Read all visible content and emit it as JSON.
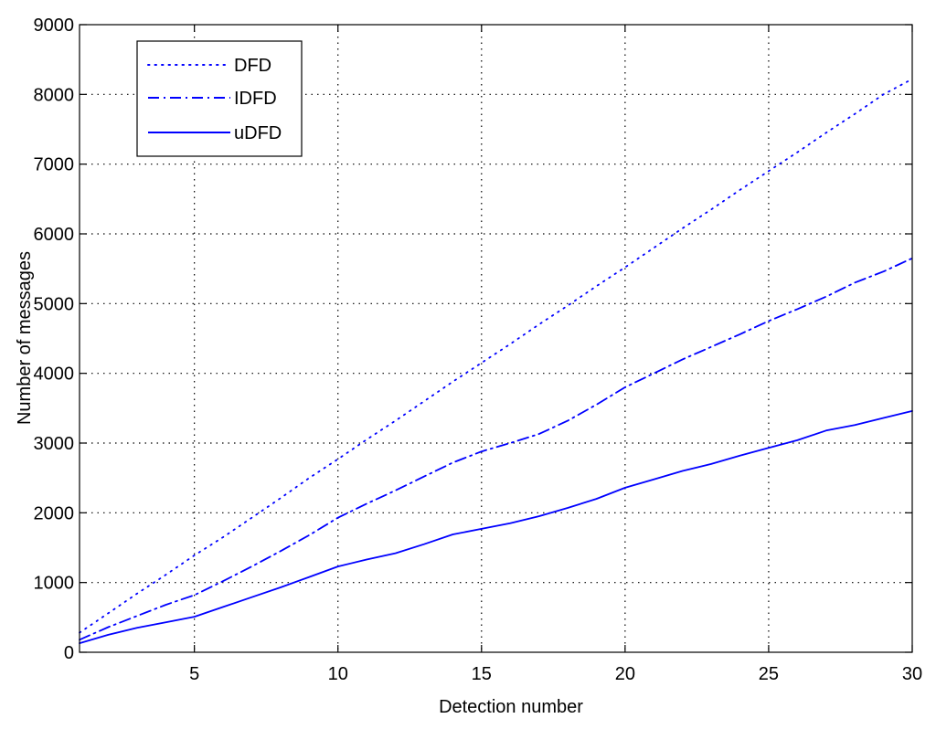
{
  "chart_data": {
    "type": "line",
    "title": "",
    "xlabel": "Detection number",
    "ylabel": "Number of messages",
    "xlim": [
      1,
      30
    ],
    "ylim": [
      0,
      9000
    ],
    "xticks": [
      5,
      10,
      15,
      20,
      25,
      30
    ],
    "yticks": [
      0,
      1000,
      2000,
      3000,
      4000,
      5000,
      6000,
      7000,
      8000,
      9000
    ],
    "grid": true,
    "legend_position": "top-left",
    "line_color": "#0000ff",
    "x": [
      1,
      2,
      3,
      4,
      5,
      6,
      7,
      8,
      9,
      10,
      11,
      12,
      13,
      14,
      15,
      16,
      17,
      18,
      19,
      20,
      21,
      22,
      23,
      24,
      25,
      26,
      27,
      28,
      29,
      30
    ],
    "series": [
      {
        "name": "DFD",
        "style": "dotted",
        "values": [
          280,
          560,
          840,
          1110,
          1390,
          1650,
          1930,
          2210,
          2500,
          2770,
          3050,
          3320,
          3600,
          3880,
          4150,
          4420,
          4700,
          4970,
          5250,
          5520,
          5800,
          6080,
          6350,
          6630,
          6900,
          7170,
          7450,
          7720,
          8000,
          8220
        ]
      },
      {
        "name": "IDFD",
        "style": "dashdot",
        "values": [
          180,
          360,
          520,
          680,
          820,
          1020,
          1230,
          1450,
          1680,
          1930,
          2130,
          2320,
          2520,
          2720,
          2880,
          3000,
          3130,
          3320,
          3550,
          3800,
          4000,
          4200,
          4380,
          4560,
          4750,
          4920,
          5100,
          5300,
          5460,
          5650
        ]
      },
      {
        "name": "uDFD",
        "style": "solid",
        "values": [
          130,
          250,
          350,
          430,
          510,
          650,
          790,
          930,
          1080,
          1230,
          1330,
          1420,
          1550,
          1690,
          1770,
          1850,
          1950,
          2070,
          2200,
          2360,
          2480,
          2600,
          2700,
          2820,
          2930,
          3040,
          3180,
          3260,
          3360,
          3460
        ]
      }
    ]
  }
}
